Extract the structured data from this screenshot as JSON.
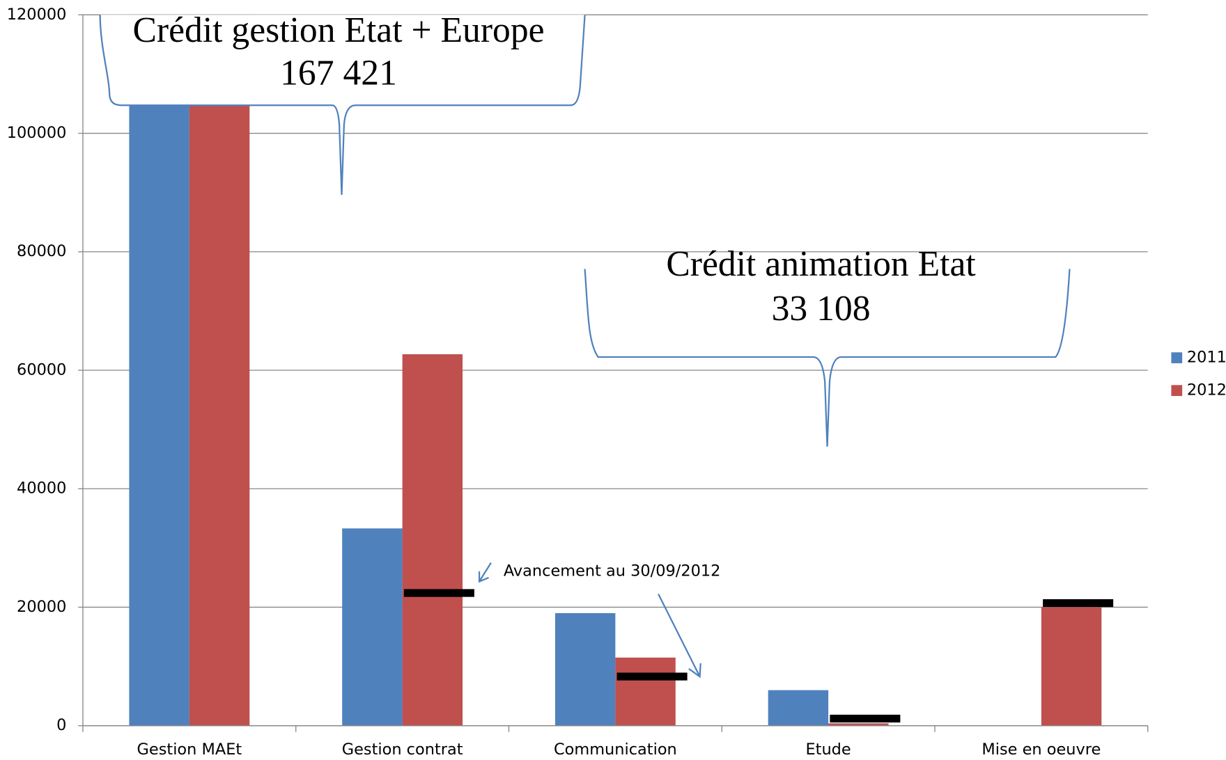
{
  "chart_data": {
    "type": "bar",
    "categories": [
      "Gestion MAEt",
      "Gestion contrat",
      "Communication",
      "Etude",
      "Mise en oeuvre"
    ],
    "series": [
      {
        "name": "2011",
        "color": "#4f81bd",
        "values": [
          120000,
          33300,
          19000,
          6000,
          0
        ]
      },
      {
        "name": "2012",
        "color": "#c0504d",
        "values": [
          120000,
          62700,
          11500,
          400,
          20000
        ]
      }
    ],
    "progress_markers": {
      "color": "#000000",
      "values": [
        null,
        22400,
        8300,
        1200,
        20700
      ]
    },
    "ylim": [
      0,
      120000
    ],
    "yticks": [
      0,
      20000,
      40000,
      60000,
      80000,
      100000,
      120000
    ],
    "grid": true,
    "legend": "right",
    "annotations": {
      "gestion_title": "Crédit gestion Etat + Europe",
      "gestion_amount": "167 421",
      "animation_title": "Crédit animation Etat",
      "animation_amount": "33 108",
      "progress_note": "Avancement  au 30/09/2012"
    }
  }
}
